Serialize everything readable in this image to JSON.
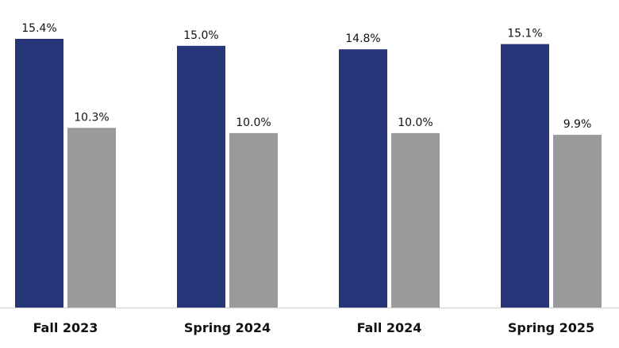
{
  "chart_data": {
    "type": "bar",
    "title": "",
    "xlabel": "",
    "ylabel": "",
    "categories": [
      "Fall 2023",
      "Spring 2024",
      "Fall 2024",
      "Spring 2025"
    ],
    "series": [
      {
        "values": [
          15.4,
          15.0,
          14.8,
          15.1
        ],
        "labels": [
          "15.4%",
          "15.0%",
          "14.8%",
          "15.1%"
        ],
        "color": "#263577"
      },
      {
        "values": [
          10.3,
          10.0,
          10.0,
          9.9
        ],
        "labels": [
          "10.3%",
          "10.0%",
          "10.0%",
          "9.9%"
        ],
        "color": "#999a9c"
      }
    ],
    "ylim": [
      0,
      15.4
    ],
    "grid": false,
    "legend": "none",
    "axis_color": "#d9d9d9"
  }
}
